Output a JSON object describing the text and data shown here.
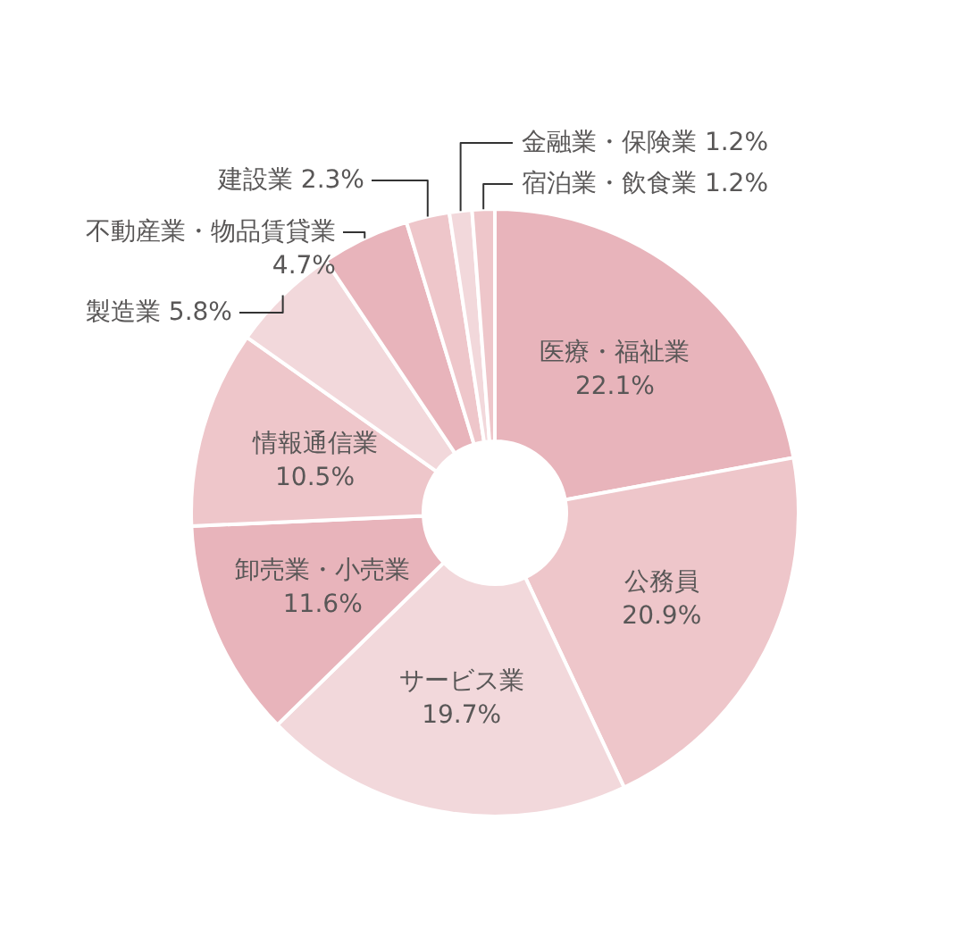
{
  "chart_data": {
    "type": "donut",
    "categories": [
      "医療・福祉業",
      "公務員",
      "サービス業",
      "卸売業・小売業",
      "情報通信業",
      "製造業",
      "不動産業・物品賃貸業",
      "建設業",
      "金融業・保険業",
      "宿泊業・飲食業"
    ],
    "values": [
      22.1,
      20.9,
      19.7,
      11.6,
      10.5,
      5.8,
      4.7,
      2.3,
      1.2,
      1.2
    ],
    "value_labels": [
      "22.1%",
      "20.9%",
      "19.7%",
      "11.6%",
      "10.5%",
      "5.8%",
      "4.7%",
      "2.3%",
      "1.2%",
      "1.2%"
    ],
    "colors": [
      "#e8b4bb",
      "#eec6ca",
      "#f2d8db",
      "#e8b4bb",
      "#eec6ca",
      "#f2d8db",
      "#e8b4bb",
      "#eec6ca",
      "#f2d8db",
      "#eec6ca"
    ]
  }
}
